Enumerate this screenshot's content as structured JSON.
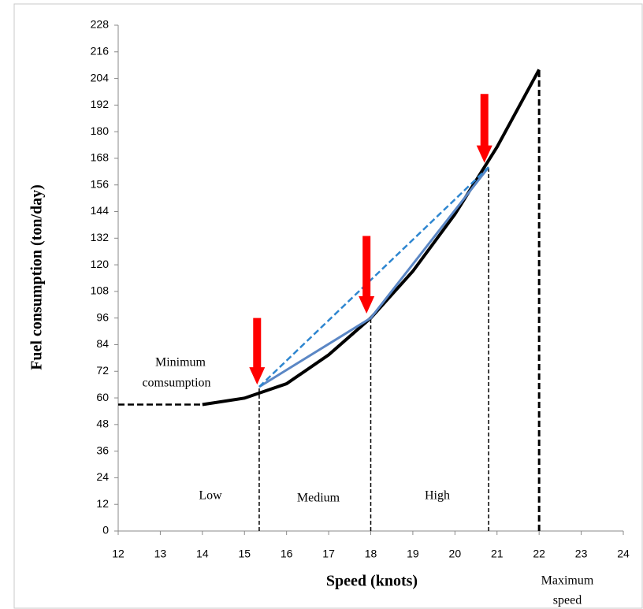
{
  "chart_data": {
    "type": "line",
    "x_label": "Speed (knots)",
    "y_label": "Fuel consumption  (ton/day)",
    "xlim": [
      12,
      24
    ],
    "xticks": [
      12,
      13,
      14,
      15,
      16,
      17,
      18,
      19,
      20,
      21,
      22,
      23,
      24
    ],
    "ylim": [
      0,
      228
    ],
    "yticks": [
      0,
      12,
      24,
      36,
      48,
      60,
      72,
      84,
      96,
      108,
      120,
      132,
      144,
      156,
      168,
      180,
      192,
      204,
      216,
      228
    ],
    "series": [
      {
        "color": "#000000",
        "width": 4,
        "dashed": false,
        "x": [
          14,
          15,
          16,
          17,
          18,
          19,
          20,
          21,
          22
        ],
        "values": [
          57,
          59.9,
          66.4,
          79.4,
          96,
          117.1,
          142.8,
          173.1,
          208
        ]
      },
      {
        "color": "#000000",
        "width": 2.5,
        "dashed": true,
        "x": [
          12,
          14
        ],
        "values": [
          57,
          57
        ]
      },
      {
        "color": "#000000",
        "width": 1.5,
        "dashed": true,
        "x": [
          15.35,
          15.35
        ],
        "values": [
          0,
          65
        ]
      },
      {
        "color": "#000000",
        "width": 1.5,
        "dashed": true,
        "x": [
          18,
          18
        ],
        "values": [
          0,
          96
        ]
      },
      {
        "color": "#000000",
        "width": 1.5,
        "dashed": true,
        "x": [
          20.8,
          20.8
        ],
        "values": [
          0,
          164
        ]
      },
      {
        "color": "#000000",
        "width": 3,
        "dashed": true,
        "x": [
          22,
          22
        ],
        "values": [
          0,
          208
        ]
      },
      {
        "color": "#5b87c5",
        "width": 3,
        "dashed": false,
        "x": [
          15.35,
          18,
          20.8
        ],
        "values": [
          65,
          96,
          164
        ]
      },
      {
        "color": "#2e86d0",
        "width": 2.5,
        "dashed": true,
        "x": [
          15.35,
          20.8
        ],
        "values": [
          65,
          164
        ]
      }
    ],
    "arrows": [
      {
        "x": 15.3,
        "y_from": 96,
        "y_to": 66
      },
      {
        "x": 17.9,
        "y_from": 133,
        "y_to": 98
      },
      {
        "x": 20.7,
        "y_from": 197,
        "y_to": 166
      }
    ],
    "arrow_color": "#ff0000",
    "annotations": [
      "Minimum",
      "comsumption",
      "Low",
      "Medium",
      "High",
      "Maximum",
      "speed"
    ]
  }
}
